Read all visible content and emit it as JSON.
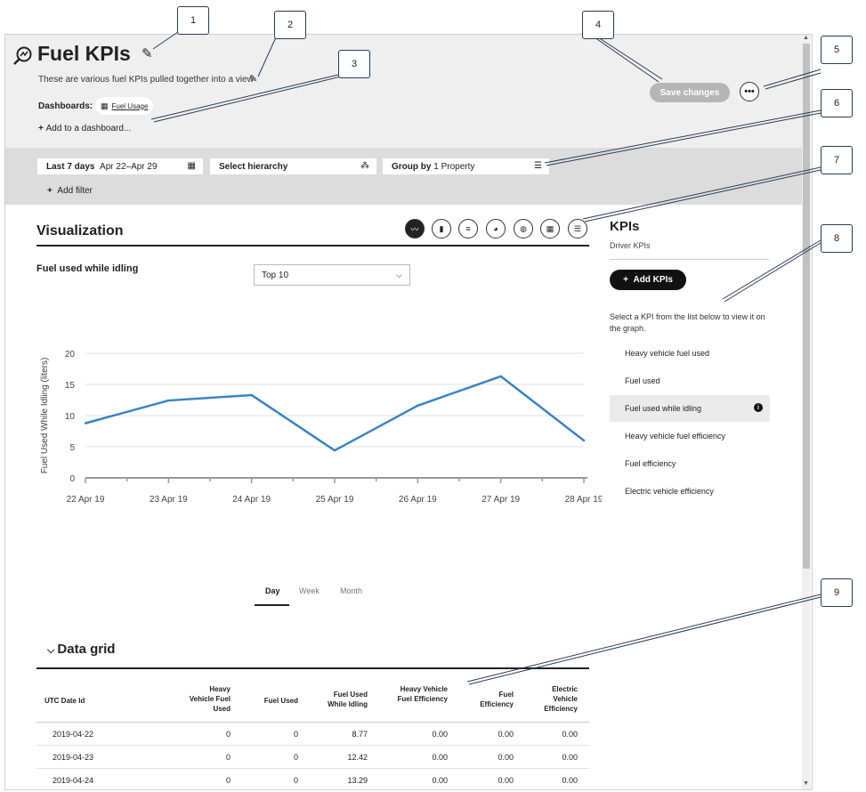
{
  "header": {
    "title": "Fuel KPIs",
    "subtitle": "These are various fuel KPIs pulled together into a view",
    "dashboards_label": "Dashboards:",
    "dashboard_pill": "Fuel Usage",
    "add_dashboard": "Add to a dashboard...",
    "save_label": "Save changes",
    "more_label": "•••"
  },
  "filters": {
    "date_label": "Last 7 days",
    "date_range": "Apr 22–Apr 29",
    "hierarchy": "Select hierarchy",
    "group_label": "Group by",
    "group_value": "1 Property",
    "add_filter": "Add filter"
  },
  "visualization": {
    "title": "Visualization",
    "chart_title": "Fuel used while idling",
    "top_select": "Top 10",
    "tabs": [
      "Day",
      "Week",
      "Month"
    ]
  },
  "chart_data": {
    "type": "line",
    "categories": [
      "22 Apr 19",
      "23 Apr 19",
      "24 Apr 19",
      "25 Apr 19",
      "26 Apr 19",
      "27 Apr 19",
      "28 Apr 19"
    ],
    "values": [
      8.77,
      12.42,
      13.29,
      4.4,
      11.6,
      16.3,
      6.0
    ],
    "ylabel": "Fuel Used While Idling (liters)",
    "ylim": [
      0,
      20
    ],
    "yticks": [
      0,
      5,
      10,
      15,
      20
    ],
    "grid": true,
    "color": "#3a84c4"
  },
  "data_grid": {
    "title": "Data grid",
    "columns": [
      "UTC Date Id",
      "Heavy Vehicle Fuel Used",
      "Fuel Used",
      "Fuel Used While Idling",
      "Heavy Vehicle Fuel Efficiency",
      "Fuel Efficiency",
      "Electric Vehicle Efficiency"
    ],
    "rows": [
      [
        "2019-04-22",
        "0",
        "0",
        "8.77",
        "0.00",
        "0.00",
        "0.00"
      ],
      [
        "2019-04-23",
        "0",
        "0",
        "12.42",
        "0.00",
        "0.00",
        "0.00"
      ],
      [
        "2019-04-24",
        "0",
        "0",
        "13.29",
        "0.00",
        "0.00",
        "0.00"
      ]
    ]
  },
  "kpis": {
    "title": "KPIs",
    "subtitle": "Driver KPIs",
    "add_label": "Add KPIs",
    "hint": "Select a KPI from the list below to view it on the graph.",
    "items": [
      "Heavy vehicle fuel used",
      "Fuel used",
      "Fuel used while idling",
      "Heavy vehicle fuel efficiency",
      "Fuel efficiency",
      "Electric vehicle efficiency"
    ],
    "selected": 2
  },
  "callouts": [
    "1",
    "2",
    "3",
    "4",
    "5",
    "6",
    "7",
    "8",
    "9"
  ]
}
